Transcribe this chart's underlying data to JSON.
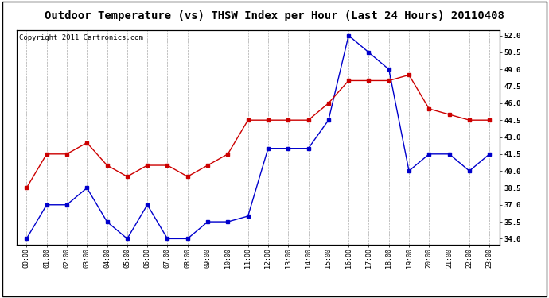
{
  "title": "Outdoor Temperature (vs) THSW Index per Hour (Last 24 Hours) 20110408",
  "copyright": "Copyright 2011 Cartronics.com",
  "hours": [
    "00:00",
    "01:00",
    "02:00",
    "03:00",
    "04:00",
    "05:00",
    "06:00",
    "07:00",
    "08:00",
    "09:00",
    "10:00",
    "11:00",
    "12:00",
    "13:00",
    "14:00",
    "15:00",
    "16:00",
    "17:00",
    "18:00",
    "19:00",
    "20:00",
    "21:00",
    "22:00",
    "23:00"
  ],
  "blue_data": [
    34.0,
    37.0,
    37.0,
    38.5,
    35.5,
    34.0,
    37.0,
    34.0,
    34.0,
    35.5,
    35.5,
    36.0,
    42.0,
    42.0,
    42.0,
    44.5,
    52.0,
    50.5,
    49.0,
    40.0,
    41.5,
    41.5,
    40.0,
    41.5
  ],
  "red_data": [
    38.5,
    41.5,
    41.5,
    42.5,
    40.5,
    39.5,
    40.5,
    40.5,
    39.5,
    40.5,
    41.5,
    44.5,
    44.5,
    44.5,
    44.5,
    46.0,
    48.0,
    48.0,
    48.0,
    48.5,
    45.5,
    45.0,
    44.5,
    44.5
  ],
  "blue_color": "#0000cc",
  "red_color": "#cc0000",
  "bg_color": "#ffffff",
  "grid_color": "#aaaaaa",
  "ylim": [
    33.5,
    52.5
  ],
  "yticks": [
    34.0,
    35.5,
    37.0,
    38.5,
    40.0,
    41.5,
    43.0,
    44.5,
    46.0,
    47.5,
    49.0,
    50.5,
    52.0
  ],
  "title_fontsize": 10,
  "copyright_fontsize": 6.5,
  "marker": "s",
  "marker_size": 2.8,
  "line_width": 1.0,
  "tick_fontsize": 6.5,
  "xtick_fontsize": 6.0
}
